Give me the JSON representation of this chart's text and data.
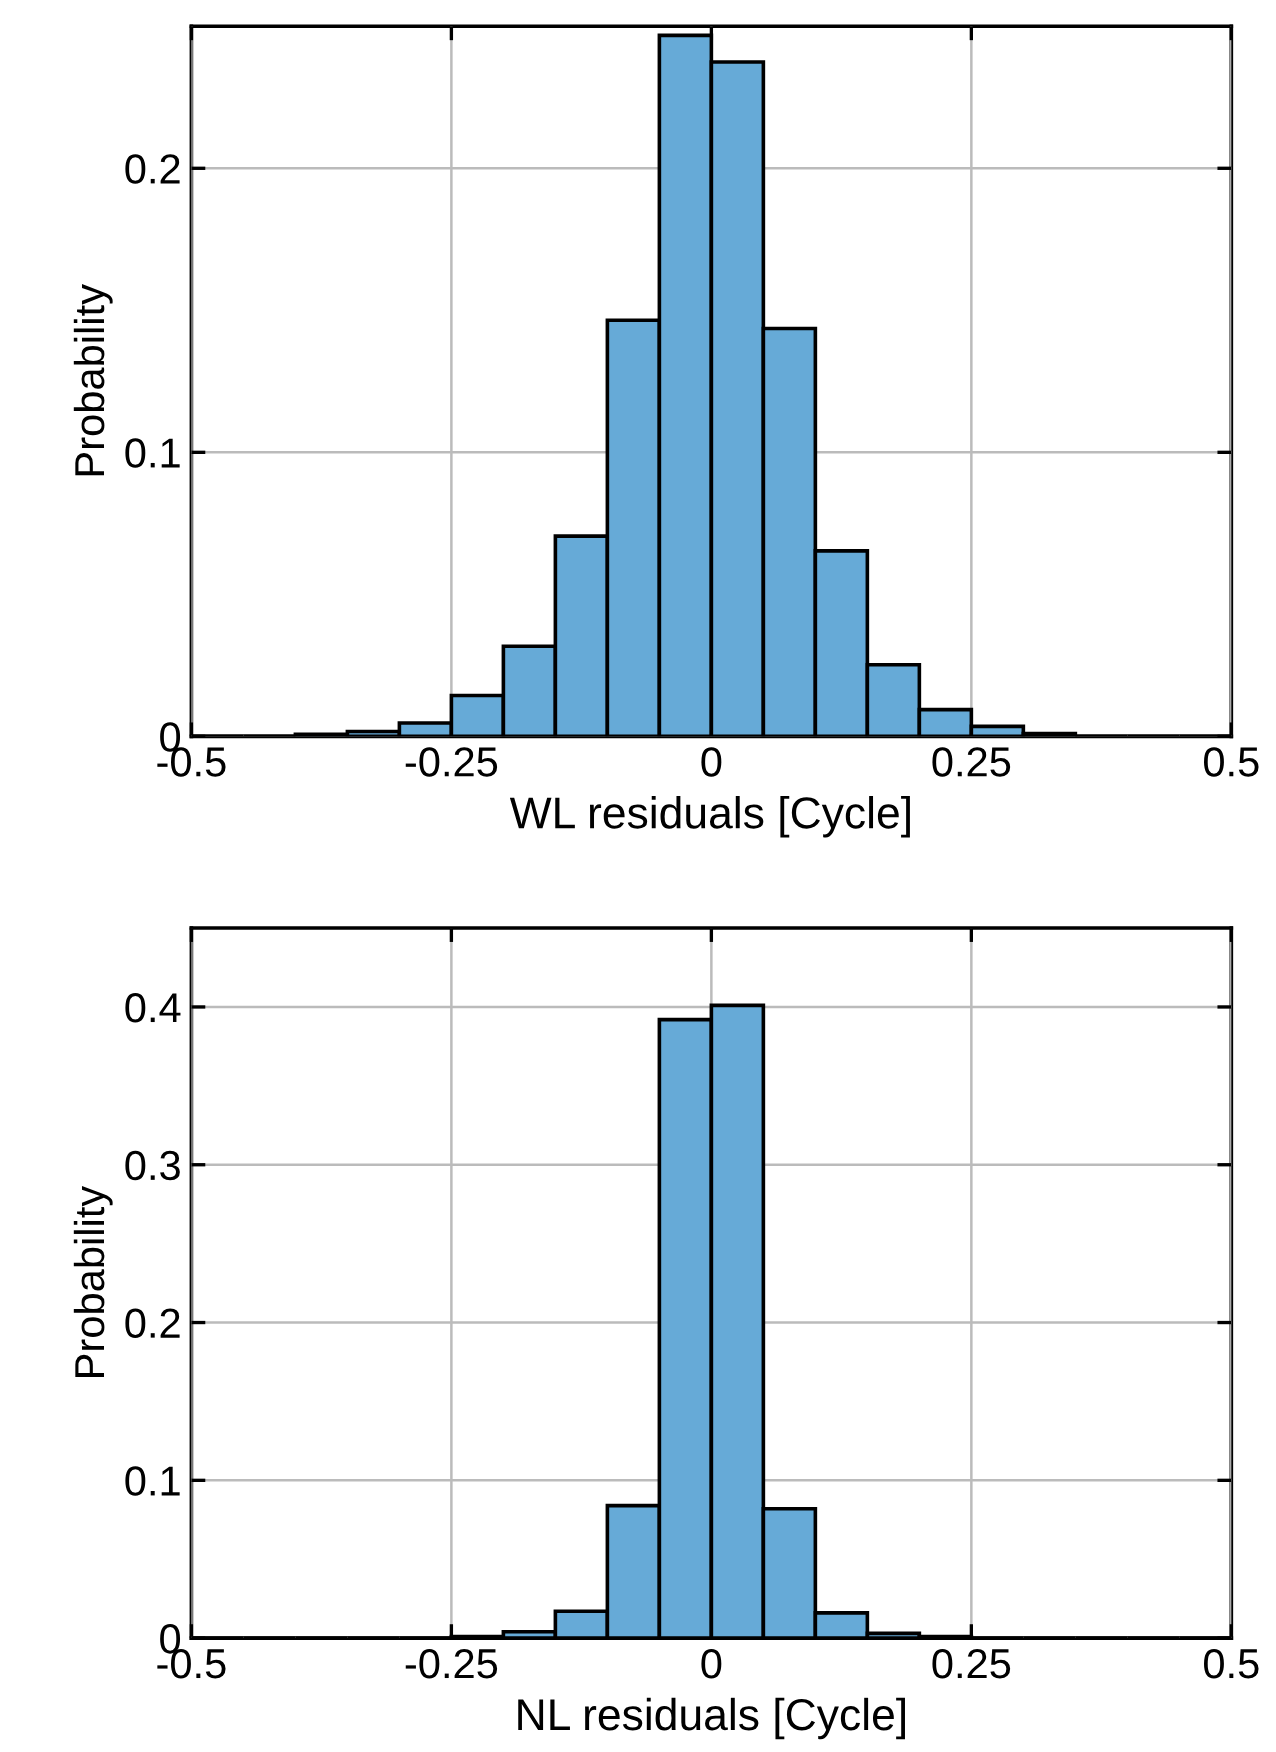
{
  "chart_data": [
    {
      "type": "histogram",
      "xlabel": "WL residuals [Cycle]",
      "ylabel": "Probability",
      "color": "#66aad7",
      "grid": true,
      "bins": [
        -0.5,
        -0.45,
        -0.4,
        -0.35,
        -0.3,
        -0.25,
        -0.2,
        -0.15,
        -0.1,
        -0.05,
        0,
        0.05,
        0.1,
        0.15,
        0.2,
        0.25,
        0.3,
        0.35,
        0.4,
        0.45,
        0.5
      ],
      "values": [
        0,
        0,
        0.0007,
        0.0017,
        0.0047,
        0.0144,
        0.0317,
        0.0705,
        0.1465,
        0.2468,
        0.2374,
        0.1436,
        0.0653,
        0.0252,
        0.0094,
        0.0035,
        0.001,
        null,
        0,
        0
      ],
      "xlim": [
        -0.5,
        0.5
      ],
      "xticks": [
        -0.5,
        -0.25,
        0,
        0.25,
        0.5
      ],
      "ylim": [
        0,
        0.25
      ],
      "yticks": [
        0,
        0.1,
        0.2
      ]
    },
    {
      "type": "histogram",
      "xlabel": "NL residuals [Cycle]",
      "ylabel": "Probability",
      "color": "#66aad7",
      "grid": true,
      "bins": [
        -0.5,
        -0.45,
        -0.4,
        -0.35,
        -0.3,
        -0.25,
        -0.2,
        -0.15,
        -0.1,
        -0.05,
        0,
        0.05,
        0.1,
        0.15,
        0.2,
        0.25,
        0.3,
        0.35,
        0.4,
        0.45,
        0.5
      ],
      "values": [
        0,
        0,
        0,
        0,
        0,
        0.001,
        0.004,
        0.017,
        0.084,
        0.392,
        0.401,
        0.082,
        0.016,
        0.003,
        0.001,
        0,
        0,
        0,
        0,
        0
      ],
      "xlim": [
        -0.5,
        0.5
      ],
      "xticks": [
        -0.5,
        -0.25,
        0,
        0.25,
        0.5
      ],
      "ylim": [
        0,
        0.45
      ],
      "yticks": [
        0,
        0.1,
        0.2,
        0.3,
        0.4
      ]
    }
  ]
}
